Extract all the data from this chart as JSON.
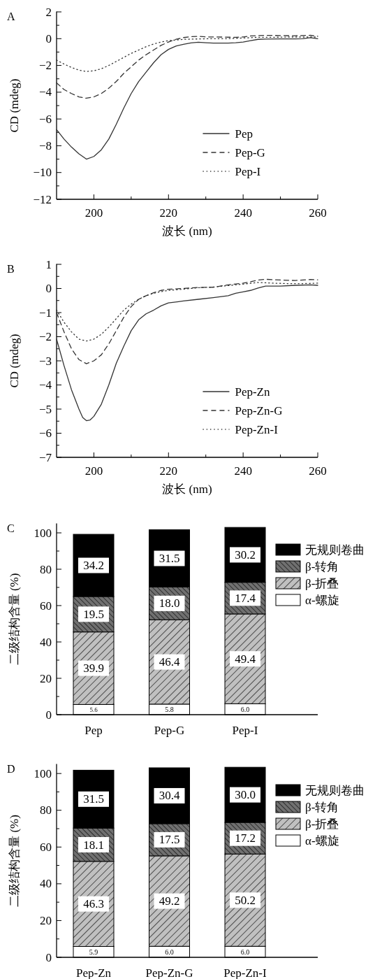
{
  "chart_data": [
    {
      "type": "line",
      "title": "A",
      "xlabel": "波长 (nm)",
      "ylabel": "CD (mdeg)",
      "xlim": [
        190,
        260
      ],
      "ylim": [
        -12,
        2
      ],
      "xticks": [
        200,
        220,
        240,
        260
      ],
      "yticks": [
        -12,
        -10,
        -8,
        -6,
        -4,
        -2,
        0,
        2
      ],
      "legend": "bottom right",
      "series": [
        {
          "name": "Pep",
          "color": "#333333",
          "line_style": "solid",
          "x": [
            190,
            192,
            194,
            196,
            198,
            200,
            202,
            204,
            206,
            208,
            210,
            212,
            214,
            216,
            218,
            220,
            222,
            224,
            226,
            228,
            230,
            232,
            236,
            238,
            240,
            242,
            244,
            246,
            250,
            254,
            256,
            258,
            260
          ],
          "values": [
            -6.8,
            -7.5,
            -8.1,
            -8.6,
            -9.0,
            -8.8,
            -8.3,
            -7.5,
            -6.4,
            -5.2,
            -4.1,
            -3.2,
            -2.5,
            -1.8,
            -1.2,
            -0.8,
            -0.55,
            -0.42,
            -0.32,
            -0.27,
            -0.3,
            -0.33,
            -0.33,
            -0.3,
            -0.25,
            -0.15,
            -0.05,
            -0.03,
            -0.02,
            -0.02,
            0.0,
            0.07,
            0.0
          ]
        },
        {
          "name": "Pep-G",
          "color": "#333333",
          "line_style": "dashed",
          "x": [
            190,
            192,
            194,
            196,
            198,
            200,
            202,
            204,
            206,
            208,
            210,
            212,
            214,
            216,
            218,
            220,
            222,
            224,
            226,
            228,
            230,
            234,
            238,
            240,
            242,
            246,
            250,
            254,
            258,
            260
          ],
          "values": [
            -3.3,
            -3.8,
            -4.1,
            -4.35,
            -4.45,
            -4.35,
            -4.1,
            -3.7,
            -3.2,
            -2.6,
            -2.1,
            -1.6,
            -1.2,
            -0.85,
            -0.5,
            -0.25,
            -0.05,
            0.08,
            0.15,
            0.17,
            0.13,
            0.12,
            0.1,
            0.13,
            0.2,
            0.25,
            0.23,
            0.22,
            0.25,
            0.18
          ]
        },
        {
          "name": "Pep-I",
          "color": "#333333",
          "line_style": "dotted",
          "x": [
            190,
            192,
            194,
            196,
            198,
            200,
            202,
            204,
            206,
            208,
            210,
            212,
            214,
            216,
            218,
            220,
            222,
            224,
            228,
            232,
            236,
            240,
            244,
            248,
            252,
            256,
            260
          ],
          "values": [
            -1.6,
            -1.9,
            -2.15,
            -2.35,
            -2.45,
            -2.4,
            -2.25,
            -2.0,
            -1.7,
            -1.4,
            -1.1,
            -0.85,
            -0.6,
            -0.4,
            -0.25,
            -0.15,
            -0.1,
            -0.05,
            -0.02,
            0.0,
            0.0,
            0.05,
            0.1,
            0.1,
            0.12,
            0.12,
            0.12
          ]
        }
      ]
    },
    {
      "type": "line",
      "title": "B",
      "xlabel": "波长 (nm)",
      "ylabel": "CD (mdeg)",
      "xlim": [
        190,
        260
      ],
      "ylim": [
        -7,
        1
      ],
      "xticks": [
        200,
        220,
        240,
        260
      ],
      "yticks": [
        -7,
        -6,
        -5,
        -4,
        -3,
        -2,
        -1,
        0,
        1
      ],
      "legend": "bottom right",
      "series": [
        {
          "name": "Pep-Zn",
          "color": "#333333",
          "line_style": "solid",
          "x": [
            190,
            192,
            194,
            196,
            197,
            198,
            199,
            200,
            202,
            204,
            206,
            208,
            210,
            212,
            214,
            216,
            218,
            220,
            224,
            228,
            232,
            236,
            238,
            240,
            242,
            244,
            246,
            250,
            254,
            258,
            260
          ],
          "values": [
            -2.1,
            -3.2,
            -4.2,
            -5.0,
            -5.35,
            -5.48,
            -5.45,
            -5.3,
            -4.8,
            -4.0,
            -3.1,
            -2.4,
            -1.75,
            -1.3,
            -1.05,
            -0.9,
            -0.72,
            -0.6,
            -0.52,
            -0.45,
            -0.38,
            -0.3,
            -0.2,
            -0.14,
            -0.08,
            0.02,
            0.1,
            0.1,
            0.13,
            0.15,
            0.13
          ]
        },
        {
          "name": "Pep-Zn-G",
          "color": "#333333",
          "line_style": "dashed",
          "x": [
            190,
            192,
            194,
            196,
            198,
            200,
            202,
            204,
            206,
            208,
            210,
            212,
            214,
            216,
            218,
            220,
            224,
            228,
            232,
            236,
            240,
            242,
            244,
            246,
            250,
            254,
            258,
            260
          ],
          "values": [
            -1.0,
            -1.8,
            -2.5,
            -2.95,
            -3.12,
            -3.0,
            -2.75,
            -2.3,
            -1.75,
            -1.2,
            -0.75,
            -0.45,
            -0.3,
            -0.18,
            -0.08,
            -0.03,
            0.0,
            0.04,
            0.05,
            0.15,
            0.22,
            0.28,
            0.35,
            0.38,
            0.35,
            0.33,
            0.37,
            0.36
          ]
        },
        {
          "name": "Pep-Zn-I",
          "color": "#333333",
          "line_style": "dotted",
          "x": [
            190,
            192,
            194,
            196,
            198,
            200,
            202,
            204,
            206,
            208,
            210,
            212,
            214,
            216,
            218,
            220,
            224,
            228,
            232,
            236,
            240,
            244,
            248,
            252,
            256,
            260
          ],
          "values": [
            -0.9,
            -1.4,
            -1.8,
            -2.1,
            -2.18,
            -2.1,
            -1.9,
            -1.6,
            -1.25,
            -0.9,
            -0.65,
            -0.45,
            -0.3,
            -0.2,
            -0.13,
            -0.08,
            -0.03,
            0.03,
            0.06,
            0.12,
            0.18,
            0.25,
            0.22,
            0.2,
            0.2,
            0.22
          ]
        }
      ]
    },
    {
      "type": "bar",
      "title": "C",
      "ylabel": "二级结构含量 (%)",
      "stacked": true,
      "ylim": [
        0,
        105
      ],
      "yticks": [
        0,
        20,
        40,
        60,
        80,
        100
      ],
      "legend": "right",
      "categories": [
        "Pep",
        "Pep-G",
        "Pep-I"
      ],
      "series": [
        {
          "name": "α-螺旋",
          "color": "#ffffff",
          "values": [
            5.6,
            5.8,
            6.0
          ],
          "value_labels": [
            "5.6",
            "5.8",
            "6.0"
          ]
        },
        {
          "name": "β-折叠",
          "color": "#c0c0c0",
          "values": [
            39.9,
            46.4,
            49.4
          ],
          "value_labels": [
            "39.9",
            "46.4",
            "49.4"
          ]
        },
        {
          "name": "β-转角",
          "color": "#707070",
          "values": [
            19.5,
            18.0,
            17.4
          ],
          "value_labels": [
            "19.5",
            "18.0",
            "17.4"
          ]
        },
        {
          "name": "无规则卷曲",
          "color": "#000000",
          "values": [
            34.2,
            31.5,
            30.2
          ],
          "value_labels": [
            "34.2",
            "31.5",
            "30.2"
          ]
        }
      ]
    },
    {
      "type": "bar",
      "title": "D",
      "ylabel": "二级结构含量 (%)",
      "stacked": true,
      "ylim": [
        0,
        105
      ],
      "yticks": [
        0,
        20,
        40,
        60,
        80,
        100
      ],
      "legend": "right",
      "categories": [
        "Pep-Zn",
        "Pep-Zn-G",
        "Pep-Zn-I"
      ],
      "series": [
        {
          "name": "α-螺旋",
          "color": "#ffffff",
          "values": [
            5.9,
            6.0,
            6.0
          ],
          "value_labels": [
            "5.9",
            "6.0",
            "6.0"
          ]
        },
        {
          "name": "β-折叠",
          "color": "#c0c0c0",
          "values": [
            46.3,
            49.2,
            50.2
          ],
          "value_labels": [
            "46.3",
            "49.2",
            "50.2"
          ]
        },
        {
          "name": "β-转角",
          "color": "#707070",
          "values": [
            18.1,
            17.5,
            17.2
          ],
          "value_labels": [
            "18.1",
            "17.5",
            "17.2"
          ]
        },
        {
          "name": "无规则卷曲",
          "color": "#000000",
          "values": [
            31.5,
            30.4,
            30.0
          ],
          "value_labels": [
            "31.5",
            "30.4",
            "30.0"
          ]
        }
      ]
    }
  ]
}
